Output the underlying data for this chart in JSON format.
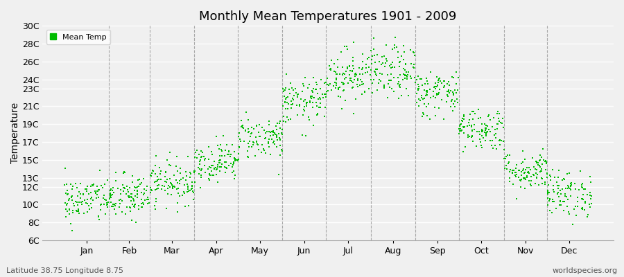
{
  "title": "Monthly Mean Temperatures 1901 - 2009",
  "ylabel": "Temperature",
  "bottom_left": "Latitude 38.75 Longitude 8.75",
  "bottom_right": "worldspecies.org",
  "legend_label": "Mean Temp",
  "dot_color": "#00bb00",
  "dot_size": 3,
  "yticks": [
    6,
    8,
    10,
    12,
    13,
    15,
    17,
    19,
    21,
    23,
    24,
    26,
    28,
    30
  ],
  "ytick_labels": [
    "6C",
    "8C",
    "10C",
    "12C",
    "13C",
    "15C",
    "17C",
    "19C",
    "21C",
    "23C",
    "24C",
    "26C",
    "28C",
    "30C"
  ],
  "ylim": [
    6,
    30
  ],
  "months": [
    "Jan",
    "Feb",
    "Mar",
    "Apr",
    "May",
    "Jun",
    "Jul",
    "Aug",
    "Sep",
    "Oct",
    "Nov",
    "Dec"
  ],
  "month_days": [
    31,
    28,
    31,
    30,
    31,
    30,
    31,
    31,
    30,
    31,
    30,
    31
  ],
  "monthly_means": [
    10.5,
    10.8,
    12.5,
    14.8,
    17.5,
    21.5,
    24.5,
    24.8,
    22.5,
    18.5,
    13.8,
    11.2
  ],
  "monthly_stds": [
    1.3,
    1.3,
    1.2,
    1.1,
    1.2,
    1.3,
    1.5,
    1.5,
    1.3,
    1.2,
    1.1,
    1.3
  ],
  "n_years": 109,
  "background_color": "#f0f0f0",
  "plot_background_color": "#f0f0f0",
  "grid_color": "#ffffff",
  "vgrid_color": "#888888"
}
